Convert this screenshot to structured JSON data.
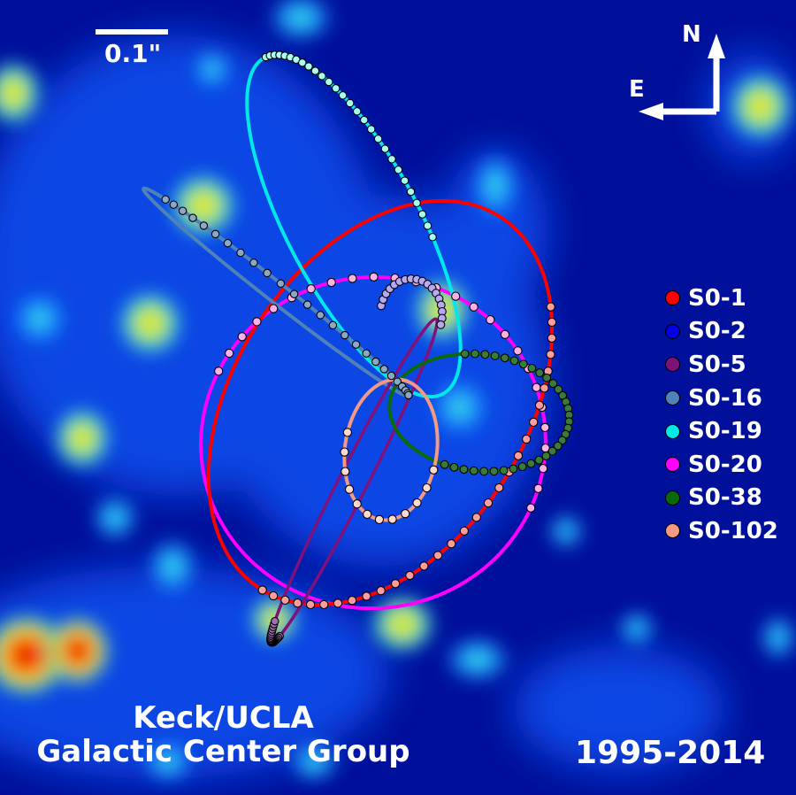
{
  "scale_bar": {
    "label": "0.1\""
  },
  "compass": {
    "north": "N",
    "east": "E"
  },
  "credit": {
    "line1": "Keck/UCLA",
    "line2": "Galactic Center Group"
  },
  "date_range": "1995-2014",
  "legend": [
    {
      "label": "S0-1",
      "color": "#ff0000"
    },
    {
      "label": "S0-2",
      "color": "#0000e0"
    },
    {
      "label": "S0-5",
      "color": "#80107a"
    },
    {
      "label": "S0-16",
      "color": "#4f82b8"
    },
    {
      "label": "S0-19",
      "color": "#00e8e8"
    },
    {
      "label": "S0-20",
      "color": "#ff00ff"
    },
    {
      "label": "S0-38",
      "color": "#0a6a0a"
    },
    {
      "label": "S0-102",
      "color": "#f59a82"
    }
  ]
}
